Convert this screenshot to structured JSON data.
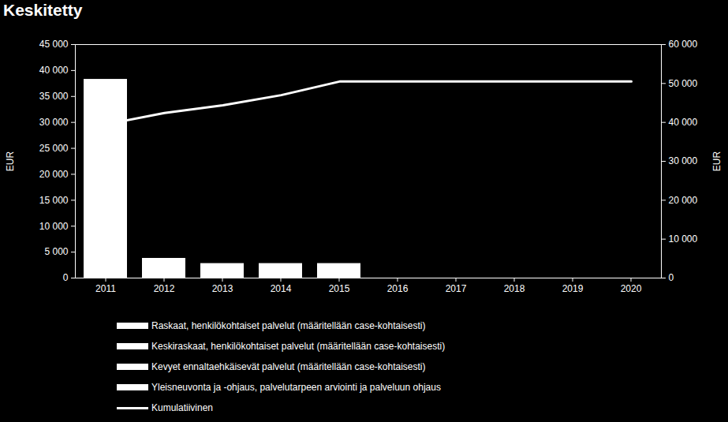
{
  "chart_data": {
    "type": "bar",
    "title": "Keskitetty",
    "categories": [
      "2011",
      "2012",
      "2013",
      "2014",
      "2015",
      "2016",
      "2017",
      "2018",
      "2019",
      "2020"
    ],
    "stacked": true,
    "grid": false,
    "legend": "bottom",
    "ylabel": "EUR",
    "y2label": "EUR",
    "ylim": [
      0,
      45000
    ],
    "yticks": [
      0,
      {
        "value": 5000,
        "label": "5 000"
      },
      {
        "value": 10000,
        "label": "10 000"
      },
      {
        "value": 15000,
        "label": "15 000"
      },
      {
        "value": 20000,
        "label": "20 000"
      },
      {
        "value": 25000,
        "label": "25 000"
      },
      {
        "value": 30000,
        "label": "30 000"
      },
      {
        "value": 35000,
        "label": "35 000"
      },
      {
        "value": 40000,
        "label": "40 000"
      },
      {
        "value": 45000,
        "label": "45 000"
      }
    ],
    "y2lim": [
      0,
      60000
    ],
    "y2ticks": [
      0,
      {
        "value": 10000,
        "label": "10 000"
      },
      {
        "value": 20000,
        "label": "20 000"
      },
      {
        "value": 30000,
        "label": "30 000"
      },
      {
        "value": 40000,
        "label": "40 000"
      },
      {
        "value": 50000,
        "label": "50 000"
      },
      {
        "value": 60000,
        "label": "60 000"
      }
    ],
    "series": [
      {
        "name": "Raskaat, henkilökohtaiset palvelut (määritellään  case-kohtaisesti)",
        "type": "bar",
        "color": "#ffffff",
        "values": [
          0,
          0,
          0,
          0,
          0,
          0,
          0,
          0,
          0,
          0
        ]
      },
      {
        "name": "Keskiraskaat, henkilökohtaiset palvelut (määritellään  case-kohtaisesti)",
        "type": "bar",
        "color": "#ffffff",
        "values": [
          0,
          0,
          0,
          0,
          0,
          0,
          0,
          0,
          0,
          0
        ]
      },
      {
        "name": "Kevyet ennaltaehkäisevät  palvelut (määritellään  case-kohtaisesti)",
        "type": "bar",
        "color": "#ffffff",
        "values": [
          0,
          0,
          0,
          0,
          0,
          0,
          0,
          0,
          0,
          0
        ]
      },
      {
        "name": "Yleisneuvonta ja -ohjaus, palvelutarpeen arviointi ja palveluun ohjaus",
        "type": "bar",
        "color": "#ffffff",
        "values": [
          38300,
          3800,
          2800,
          2800,
          2800,
          0,
          0,
          0,
          0,
          0
        ]
      },
      {
        "name": "Kumulatiivinen",
        "type": "line",
        "axis": "y2",
        "color": "#ffffff",
        "values": [
          39500,
          42400,
          44400,
          47000,
          50500,
          50500,
          50500,
          50500,
          50500,
          50500
        ]
      }
    ]
  }
}
